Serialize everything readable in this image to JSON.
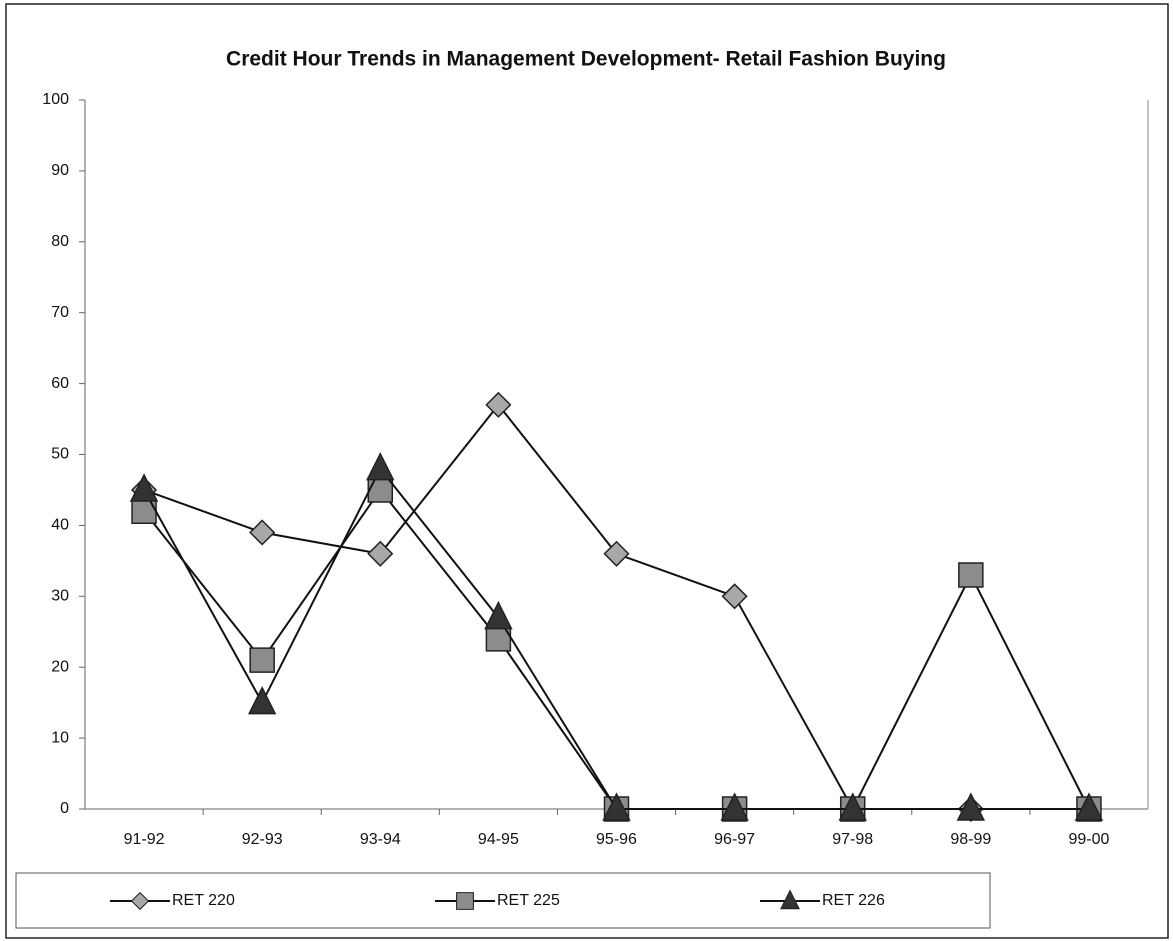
{
  "chart_data": {
    "type": "line",
    "title": "Credit Hour Trends in Management Development- Retail Fashion Buying",
    "categories": [
      "91-92",
      "92-93",
      "93-94",
      "94-95",
      "95-96",
      "96-97",
      "97-98",
      "98-99",
      "99-00"
    ],
    "series": [
      {
        "name": "RET 220",
        "color": "#a8a8a8",
        "marker": "diamond",
        "values": [
          45,
          39,
          36,
          57,
          36,
          30,
          0,
          0,
          0
        ]
      },
      {
        "name": "RET 225",
        "color": "#8c8c8c",
        "marker": "square",
        "values": [
          42,
          21,
          45,
          24,
          0,
          0,
          0,
          33,
          0
        ]
      },
      {
        "name": "RET 226",
        "color": "#333333",
        "marker": "triangle",
        "values": [
          45,
          15,
          48,
          27,
          0,
          0,
          0,
          0,
          0
        ]
      }
    ],
    "ylim": [
      0,
      100
    ],
    "yticks": [
      0,
      10,
      20,
      30,
      40,
      50,
      60,
      70,
      80,
      90,
      100
    ],
    "grid": false,
    "legend": "bottom"
  }
}
